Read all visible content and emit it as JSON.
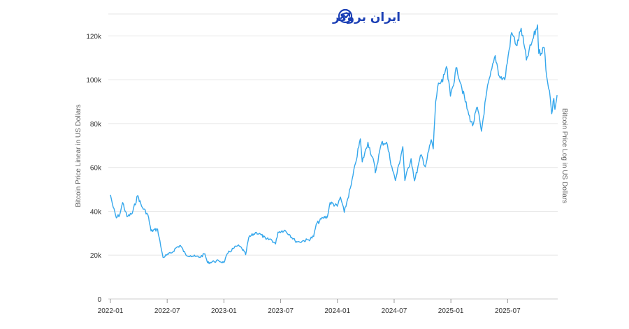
{
  "logo": {
    "text": "ایران بروکر",
    "color": "#1b3fb5"
  },
  "chart_data": {
    "type": "line",
    "y_axis_left": {
      "label": "Bitcoin Price Linear in US Dollars",
      "ticks": [
        {
          "value": 0,
          "label": "0"
        },
        {
          "value": 20000,
          "label": "20k"
        },
        {
          "value": 40000,
          "label": "40k"
        },
        {
          "value": 60000,
          "label": "60k"
        },
        {
          "value": 80000,
          "label": "80k"
        },
        {
          "value": 100000,
          "label": "100k"
        },
        {
          "value": 120000,
          "label": "120k"
        }
      ],
      "ylim": [
        0,
        130000
      ]
    },
    "y_axis_right": {
      "label": "Bitcoin Price Log in US Dollars"
    },
    "x_axis": {
      "ticks": [
        "2022-01",
        "2022-07",
        "2023-01",
        "2023-07",
        "2024-01",
        "2024-07",
        "2025-01",
        "2025-07"
      ],
      "range": [
        "2022-01",
        "2025-11"
      ]
    },
    "grid": true,
    "series": [
      {
        "color": "#35a7ec",
        "points": [
          [
            "2022-01-01",
            47500
          ],
          [
            "2022-01-10",
            41800
          ],
          [
            "2022-01-20",
            37000
          ],
          [
            "2022-01-31",
            38500
          ],
          [
            "2022-02-10",
            44000
          ],
          [
            "2022-02-24",
            37500
          ],
          [
            "2022-03-10",
            39000
          ],
          [
            "2022-03-28",
            47200
          ],
          [
            "2022-04-10",
            42300
          ],
          [
            "2022-04-30",
            38500
          ],
          [
            "2022-05-10",
            31000
          ],
          [
            "2022-05-31",
            31800
          ],
          [
            "2022-06-13",
            22500
          ],
          [
            "2022-06-18",
            19000
          ],
          [
            "2022-06-30",
            20000
          ],
          [
            "2022-07-15",
            21000
          ],
          [
            "2022-07-31",
            23500
          ],
          [
            "2022-08-13",
            24400
          ],
          [
            "2022-08-31",
            20000
          ],
          [
            "2022-09-15",
            19800
          ],
          [
            "2022-09-30",
            19400
          ],
          [
            "2022-10-15",
            19100
          ],
          [
            "2022-10-31",
            20600
          ],
          [
            "2022-11-09",
            16500
          ],
          [
            "2022-11-30",
            17100
          ],
          [
            "2022-12-15",
            17400
          ],
          [
            "2022-12-31",
            16600
          ],
          [
            "2023-01-14",
            20900
          ],
          [
            "2023-01-31",
            23000
          ],
          [
            "2023-02-15",
            24300
          ],
          [
            "2023-02-28",
            23200
          ],
          [
            "2023-03-10",
            20200
          ],
          [
            "2023-03-20",
            28000
          ],
          [
            "2023-04-14",
            30400
          ],
          [
            "2023-04-30",
            29200
          ],
          [
            "2023-05-15",
            27200
          ],
          [
            "2023-05-31",
            27200
          ],
          [
            "2023-06-15",
            25100
          ],
          [
            "2023-06-23",
            30500
          ],
          [
            "2023-07-13",
            31400
          ],
          [
            "2023-07-31",
            29200
          ],
          [
            "2023-08-17",
            26500
          ],
          [
            "2023-08-31",
            26000
          ],
          [
            "2023-09-15",
            26600
          ],
          [
            "2023-09-30",
            27000
          ],
          [
            "2023-10-16",
            28500
          ],
          [
            "2023-10-24",
            34000
          ],
          [
            "2023-11-15",
            37000
          ],
          [
            "2023-11-30",
            37700
          ],
          [
            "2023-12-08",
            44000
          ],
          [
            "2023-12-31",
            42300
          ],
          [
            "2024-01-11",
            46500
          ],
          [
            "2024-01-23",
            39500
          ],
          [
            "2024-02-15",
            52000
          ],
          [
            "2024-02-29",
            62000
          ],
          [
            "2024-03-14",
            73000
          ],
          [
            "2024-03-20",
            62500
          ],
          [
            "2024-04-08",
            71500
          ],
          [
            "2024-04-30",
            60500
          ],
          [
            "2024-05-01",
            57500
          ],
          [
            "2024-05-21",
            71000
          ],
          [
            "2024-06-07",
            71500
          ],
          [
            "2024-06-24",
            60300
          ],
          [
            "2024-07-05",
            54000
          ],
          [
            "2024-07-29",
            69500
          ],
          [
            "2024-08-05",
            54000
          ],
          [
            "2024-08-25",
            64000
          ],
          [
            "2024-09-06",
            53900
          ],
          [
            "2024-09-27",
            65800
          ],
          [
            "2024-10-10",
            60300
          ],
          [
            "2024-10-29",
            72600
          ],
          [
            "2024-11-05",
            68500
          ],
          [
            "2024-11-13",
            90000
          ],
          [
            "2024-11-22",
            98500
          ],
          [
            "2024-12-05",
            99000
          ],
          [
            "2024-12-17",
            106000
          ],
          [
            "2024-12-30",
            92500
          ],
          [
            "2025-01-20",
            105500
          ],
          [
            "2025-02-03",
            98000
          ],
          [
            "2025-02-28",
            84000
          ],
          [
            "2025-03-10",
            79000
          ],
          [
            "2025-03-25",
            87500
          ],
          [
            "2025-04-08",
            76500
          ],
          [
            "2025-04-25",
            94500
          ],
          [
            "2025-05-22",
            111000
          ],
          [
            "2025-06-05",
            101500
          ],
          [
            "2025-06-22",
            100000
          ],
          [
            "2025-07-14",
            121500
          ],
          [
            "2025-07-31",
            115500
          ],
          [
            "2025-08-14",
            123500
          ],
          [
            "2025-08-31",
            109000
          ],
          [
            "2025-09-18",
            117000
          ],
          [
            "2025-10-06",
            125000
          ],
          [
            "2025-10-10",
            112000
          ],
          [
            "2025-10-28",
            114500
          ],
          [
            "2025-11-05",
            101500
          ],
          [
            "2025-11-14",
            95000
          ],
          [
            "2025-11-21",
            84500
          ],
          [
            "2025-11-28",
            91500
          ],
          [
            "2025-12-01",
            86500
          ],
          [
            "2025-12-08",
            93000
          ]
        ]
      }
    ]
  }
}
